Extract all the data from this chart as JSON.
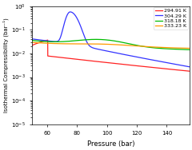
{
  "xlabel": "Pressure (bar)",
  "ylabel": "Isothermal Compressibility (bar⁻¹)",
  "xlim": [
    50,
    155
  ],
  "ylim": [
    1e-05,
    1.0
  ],
  "legend_labels": [
    "294.91 K",
    "304.29 K",
    "318.18 K",
    "333.23 K"
  ],
  "colors": [
    "#ff2222",
    "#3333ff",
    "#00bb00",
    "#ff9900"
  ],
  "background": "#ffffff",
  "xticks": [
    60,
    80,
    100,
    120,
    140
  ]
}
